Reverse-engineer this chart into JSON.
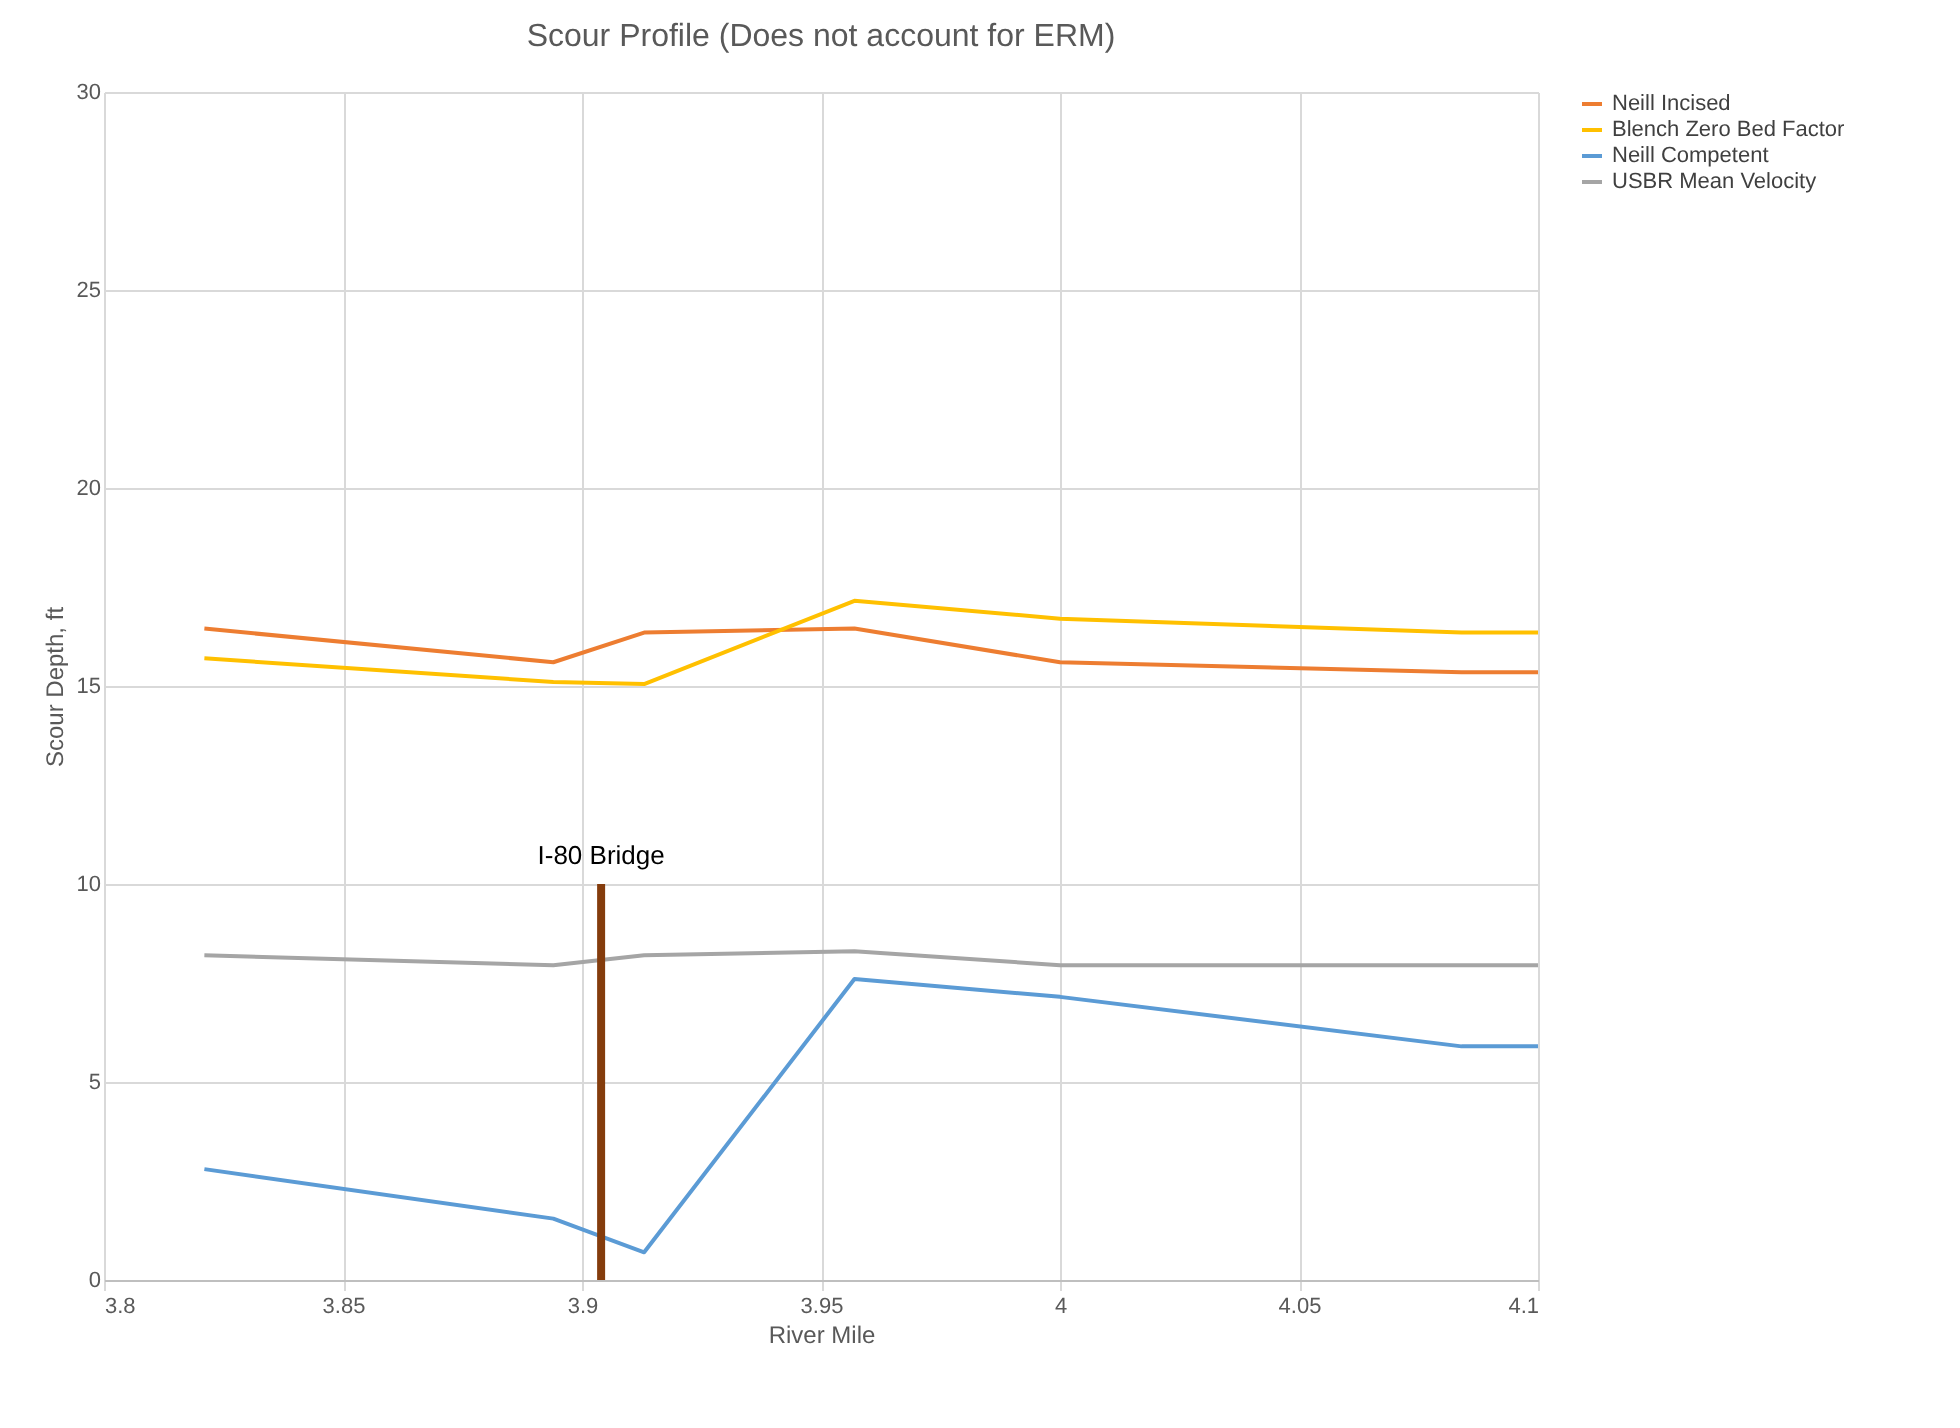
{
  "chart_data": {
    "type": "line",
    "title": "Scour Profile (Does not account for ERM)",
    "xlabel": "River Mile",
    "ylabel": "Scour Depth, ft",
    "x": [
      3.821,
      3.894,
      3.913,
      3.957,
      4.0,
      4.084,
      4.1
    ],
    "series": [
      {
        "name": "Neill Incised",
        "color": "#ed7d31",
        "values": [
          16.45,
          15.6,
          16.35,
          16.45,
          15.6,
          15.35,
          15.35
        ]
      },
      {
        "name": "Blench Zero Bed Factor",
        "color": "#ffc000",
        "values": [
          15.7,
          15.1,
          15.05,
          17.15,
          16.7,
          16.35,
          16.35
        ]
      },
      {
        "name": "Neill Competent",
        "color": "#5b9bd5",
        "values": [
          2.8,
          1.55,
          0.7,
          7.6,
          7.15,
          5.9,
          5.9
        ]
      },
      {
        "name": "USBR Mean Velocity",
        "color": "#a5a5a5",
        "values": [
          8.2,
          7.95,
          8.2,
          8.3,
          7.95,
          7.95,
          7.95
        ]
      },
      {
        "color": "#843c0c",
        "x": [
          3.904,
          3.904
        ],
        "values": [
          0,
          10
        ]
      }
    ],
    "annotations": [
      {
        "text": "I-80 Bridge",
        "x": 3.904,
        "y": 10
      }
    ],
    "xlim": [
      3.8,
      4.1
    ],
    "xticks": [
      3.8,
      3.85,
      3.9,
      3.95,
      4,
      4.05,
      4.1
    ],
    "ylim": [
      0,
      30
    ],
    "yticks": [
      0,
      5,
      10,
      15,
      20,
      25,
      30
    ],
    "grid": true,
    "legend": "right",
    "marker": "none",
    "line_style": "solid"
  }
}
